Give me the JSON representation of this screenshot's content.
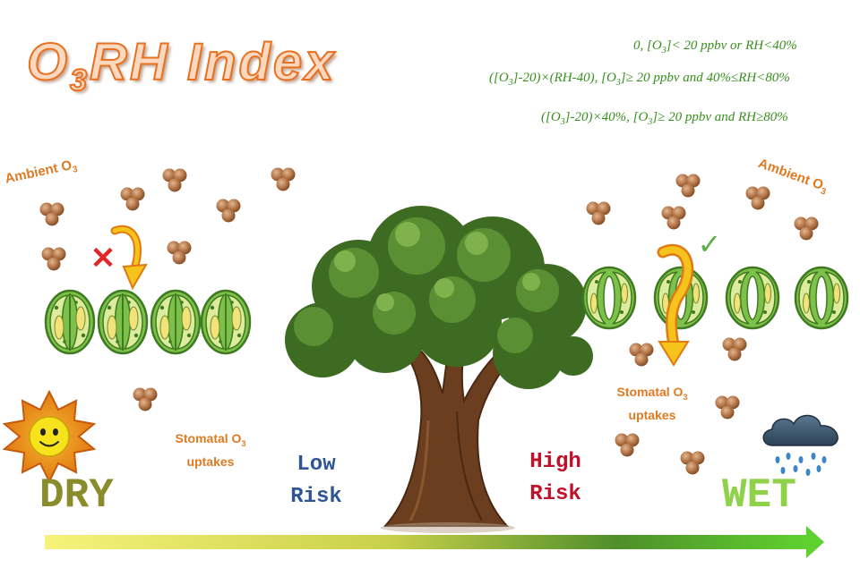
{
  "title": {
    "base": "O",
    "sub": "3",
    "rest": "RH Index"
  },
  "equations": [
    {
      "pre": "0, [O",
      "sub": "3",
      "post": "]< 20 ppbv or RH<40%"
    },
    {
      "pre": "([O",
      "sub": "3",
      "mid": "]-20)×(RH-40), [O",
      "sub2": "3",
      "post": "]≥ 20 ppbv and 40%≤RH<80%"
    },
    {
      "pre": "([O",
      "sub": "3",
      "mid": "]-20)×40%, [O",
      "sub2": "3",
      "post": "]≥ 20 ppbv and RH≥80%"
    }
  ],
  "ambient": {
    "text": "Ambient O",
    "sub": "3"
  },
  "stomatal": {
    "line1": "Stomatal O",
    "sub": "3",
    "line2": "uptakes"
  },
  "risk": {
    "low1": "Low",
    "low2": "Risk",
    "high1": "High",
    "high2": "Risk"
  },
  "conditions": {
    "dry": "DRY",
    "wet": "WET"
  },
  "marks": {
    "blocked": "✕",
    "allowed": "✓"
  },
  "colors": {
    "ozone": "#b5774a",
    "title_stroke": "#e8701f",
    "equation": "#3a8f1f",
    "low_risk": "#2f5596",
    "high_risk": "#c0112b",
    "dry": "#8a8c2c",
    "wet": "#8fd24a",
    "arrow_start": "#f6f37a",
    "arrow_end": "#5fd12e"
  }
}
